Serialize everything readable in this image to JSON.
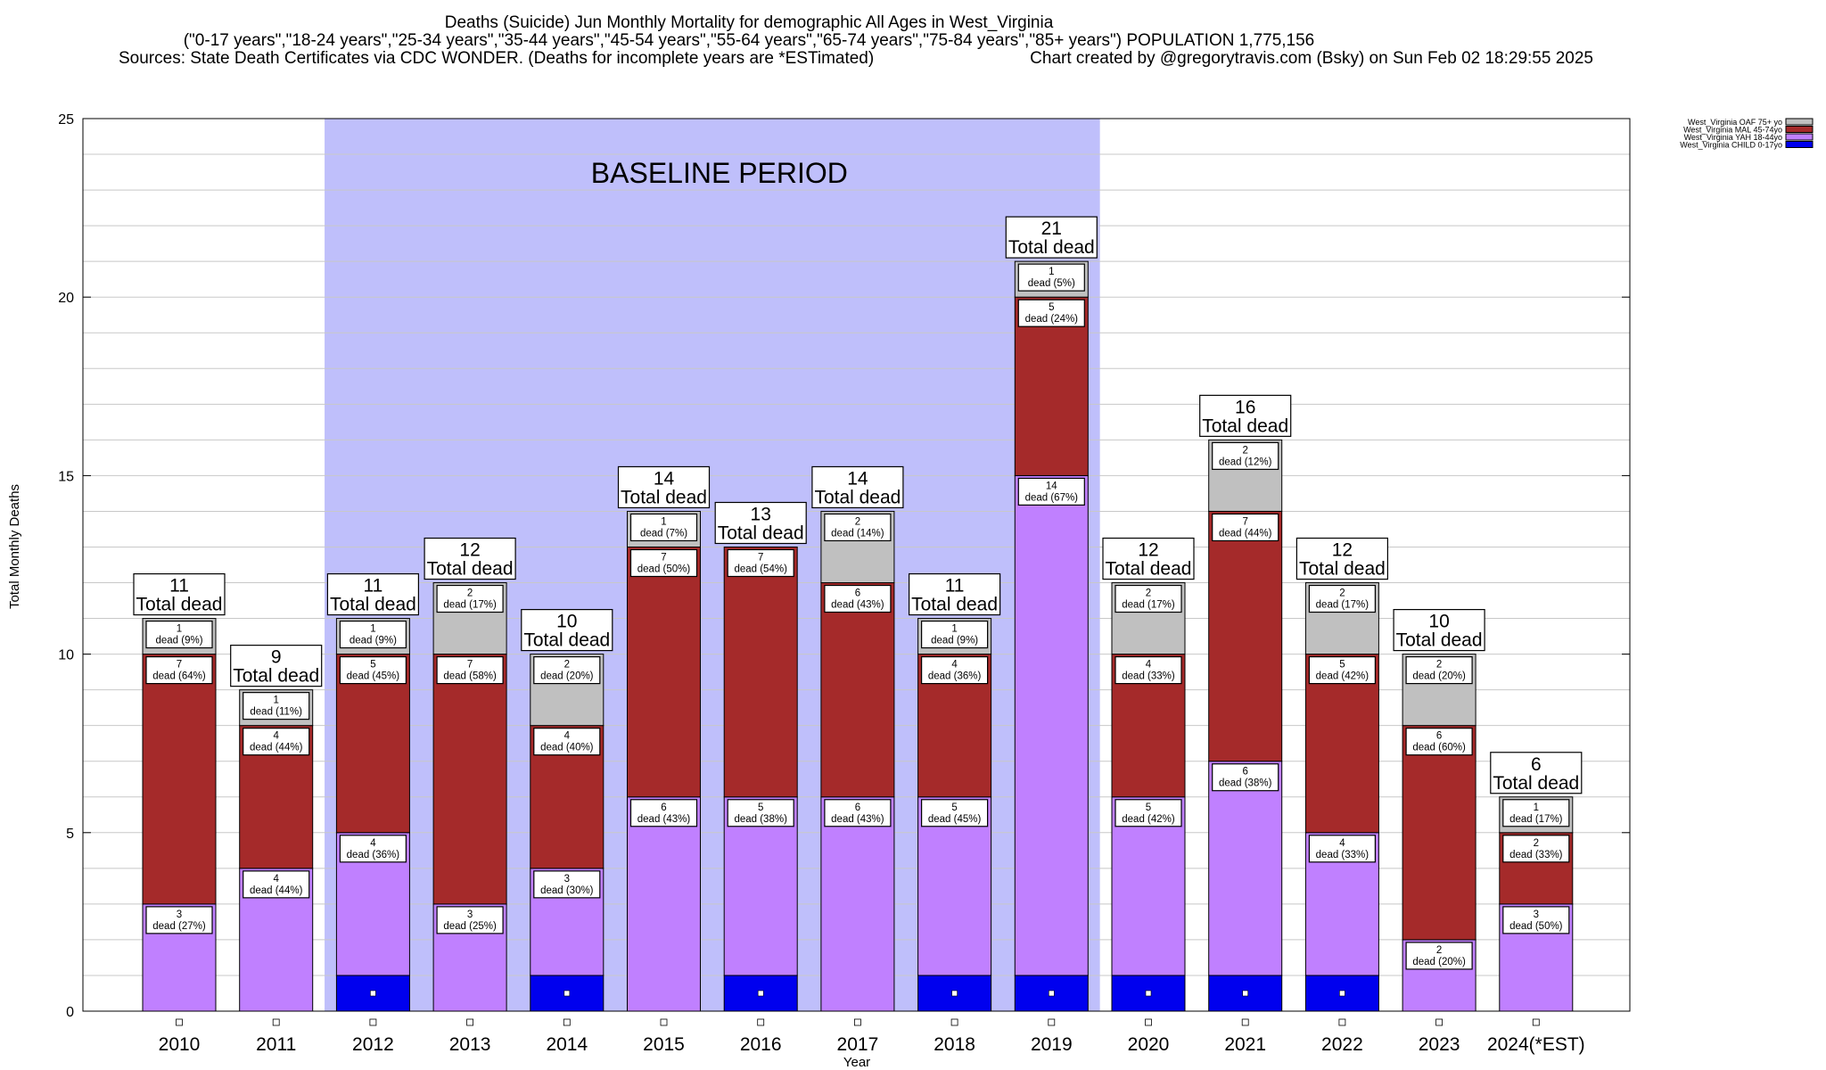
{
  "chart_data": {
    "type": "bar",
    "stacked": true,
    "title": "Deaths (Suicide) Jun Monthly Mortality for demographic All Ages in West_Virginia",
    "subtitle": "(\"0-17 years\",\"18-24 years\",\"25-34 years\",\"35-44 years\",\"45-54 years\",\"55-64 years\",\"65-74 years\",\"75-84 years\",\"85+ years\") POPULATION 1,775,156",
    "sources": "Sources: State Death Certificates via CDC WONDER. (Deaths for incomplete years are *ESTimated)",
    "credit": "Chart created by @gregorytravis.com (Bsky) on Sun Feb 02 18:29:55 2025",
    "xlabel": "Year",
    "ylabel": "Total Monthly Deaths",
    "ylim": [
      0,
      25
    ],
    "yticks": [
      0,
      5,
      10,
      15,
      20,
      25
    ],
    "grid": true,
    "legend_position": "top-right",
    "categories": [
      "2010",
      "2011",
      "2012",
      "2013",
      "2014",
      "2015",
      "2016",
      "2017",
      "2018",
      "2019",
      "2020",
      "2021",
      "2022",
      "2023",
      "2024(*EST)"
    ],
    "baseline": {
      "label": "BASELINE PERIOD",
      "start": "2012",
      "end": "2019",
      "color": "#bfbffb"
    },
    "total_suffix": "Total dead",
    "totals": [
      11,
      9,
      11,
      12,
      10,
      14,
      13,
      14,
      11,
      21,
      12,
      16,
      12,
      10,
      6
    ],
    "series": [
      {
        "name": "West_Virginia CHILD 0-17yo",
        "color": "#0000ee",
        "values": [
          0,
          0,
          1,
          0,
          1,
          0,
          1,
          0,
          1,
          1,
          1,
          1,
          1,
          0,
          0
        ],
        "labels": [
          null,
          null,
          null,
          null,
          null,
          null,
          null,
          null,
          null,
          null,
          null,
          null,
          null,
          null,
          null
        ]
      },
      {
        "name": "West_Virginia YAH 18-44yo",
        "color": "#c080ff",
        "values": [
          3,
          4,
          4,
          3,
          3,
          6,
          5,
          6,
          5,
          14,
          5,
          6,
          4,
          2,
          3
        ],
        "labels": [
          [
            "3",
            "dead (27%)"
          ],
          [
            "4",
            "dead (44%)"
          ],
          [
            "4",
            "dead (36%)"
          ],
          [
            "3",
            "dead (25%)"
          ],
          [
            "3",
            "dead (30%)"
          ],
          [
            "6",
            "dead (43%)"
          ],
          [
            "5",
            "dead (38%)"
          ],
          [
            "6",
            "dead (43%)"
          ],
          [
            "5",
            "dead (45%)"
          ],
          [
            "14",
            "dead (67%)"
          ],
          [
            "5",
            "dead (42%)"
          ],
          [
            "6",
            "dead (38%)"
          ],
          [
            "4",
            "dead (33%)"
          ],
          [
            "2",
            "dead (20%)"
          ],
          [
            "3",
            "dead (50%)"
          ]
        ]
      },
      {
        "name": "West_Virginia MAL 45-74yo",
        "color": "#a52a2a",
        "values": [
          7,
          4,
          5,
          7,
          4,
          7,
          7,
          6,
          4,
          5,
          4,
          7,
          5,
          6,
          2
        ],
        "labels": [
          [
            "7",
            "dead (64%)"
          ],
          [
            "4",
            "dead (44%)"
          ],
          [
            "5",
            "dead (45%)"
          ],
          [
            "7",
            "dead (58%)"
          ],
          [
            "4",
            "dead (40%)"
          ],
          [
            "7",
            "dead (50%)"
          ],
          [
            "7",
            "dead (54%)"
          ],
          [
            "6",
            "dead (43%)"
          ],
          [
            "4",
            "dead (36%)"
          ],
          [
            "5",
            "dead (24%)"
          ],
          [
            "4",
            "dead (33%)"
          ],
          [
            "7",
            "dead (44%)"
          ],
          [
            "5",
            "dead (42%)"
          ],
          [
            "6",
            "dead (60%)"
          ],
          [
            "2",
            "dead (33%)"
          ]
        ]
      },
      {
        "name": "West_Virginia OAF 75+ yo",
        "color": "#c0c0c0",
        "values": [
          1,
          1,
          1,
          2,
          2,
          1,
          0,
          2,
          1,
          1,
          2,
          2,
          2,
          2,
          1
        ],
        "labels": [
          [
            "1",
            "dead (9%)"
          ],
          [
            "1",
            "dead (11%)"
          ],
          [
            "1",
            "dead (9%)"
          ],
          [
            "2",
            "dead (17%)"
          ],
          [
            "2",
            "dead (20%)"
          ],
          [
            "1",
            "dead (7%)"
          ],
          null,
          [
            "2",
            "dead (14%)"
          ],
          [
            "1",
            "dead (9%)"
          ],
          [
            "1",
            "dead (5%)"
          ],
          [
            "2",
            "dead (17%)"
          ],
          [
            "2",
            "dead (12%)"
          ],
          [
            "2",
            "dead (17%)"
          ],
          [
            "2",
            "dead (20%)"
          ],
          [
            "1",
            "dead (17%)"
          ]
        ]
      }
    ],
    "legend_order": [
      "West_Virginia OAF 75+ yo",
      "West_Virginia MAL 45-74yo",
      "West_Virginia YAH 18-44yo",
      "West_Virginia CHILD 0-17yo"
    ]
  }
}
